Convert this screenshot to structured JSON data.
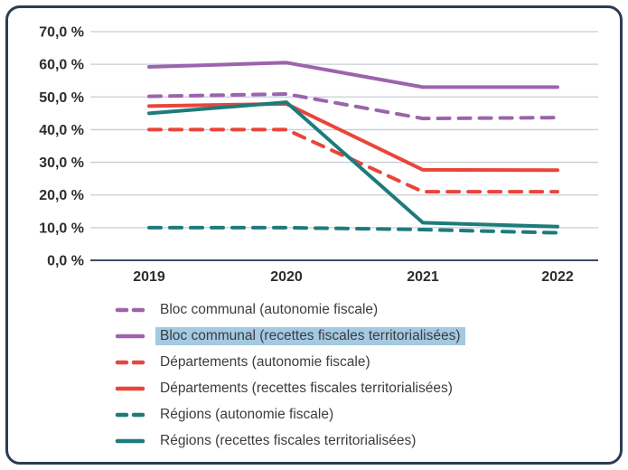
{
  "panel": {
    "border_color": "#2d3c51",
    "background_color": "#ffffff"
  },
  "chart_data": {
    "type": "line",
    "x_labels": [
      "2019",
      "2020",
      "2021",
      "2022"
    ],
    "y_tick_labels": [
      "0,0 %",
      "10,0 %",
      "20,0 %",
      "30,0 %",
      "40,0 %",
      "50,0 %",
      "60,0 %",
      "70,0 %"
    ],
    "y_tick_values": [
      0,
      10,
      20,
      30,
      40,
      50,
      60,
      70
    ],
    "ylim": [
      0,
      70
    ],
    "grid": true,
    "legend_position": "bottom",
    "grid_color": "#c8cdd7",
    "axis_color": "#3c4c66",
    "text_color": "#2d2d2d",
    "highlight_color": "#a3c9e3",
    "series": [
      {
        "name": "Bloc communal (autonomie fiscale)",
        "color": "#9c64ad",
        "style": "dashed",
        "highlighted": false,
        "values": [
          50.2,
          50.9,
          43.4,
          43.7
        ]
      },
      {
        "name": "Bloc communal (recettes fiscales territorialisées)",
        "color": "#9c64ad",
        "style": "solid",
        "highlighted": true,
        "values": [
          59.2,
          60.5,
          53.0,
          53.0
        ]
      },
      {
        "name": "Départements (autonomie fiscale)",
        "color": "#e9453b",
        "style": "dashed",
        "highlighted": false,
        "values": [
          40.0,
          40.0,
          21.0,
          21.0
        ]
      },
      {
        "name": "Départements (recettes fiscales territorialisées)",
        "color": "#e9453b",
        "style": "solid",
        "highlighted": false,
        "values": [
          47.2,
          47.9,
          27.7,
          27.6
        ]
      },
      {
        "name": "Régions (autonomie fiscale)",
        "color": "#1e7b7b",
        "style": "dashed",
        "highlighted": false,
        "values": [
          10.0,
          10.0,
          9.4,
          8.4
        ]
      },
      {
        "name": "Régions (recettes fiscales territorialisées)",
        "color": "#1e7b7b",
        "style": "solid",
        "highlighted": false,
        "values": [
          45.0,
          48.4,
          11.5,
          10.3
        ]
      }
    ]
  }
}
